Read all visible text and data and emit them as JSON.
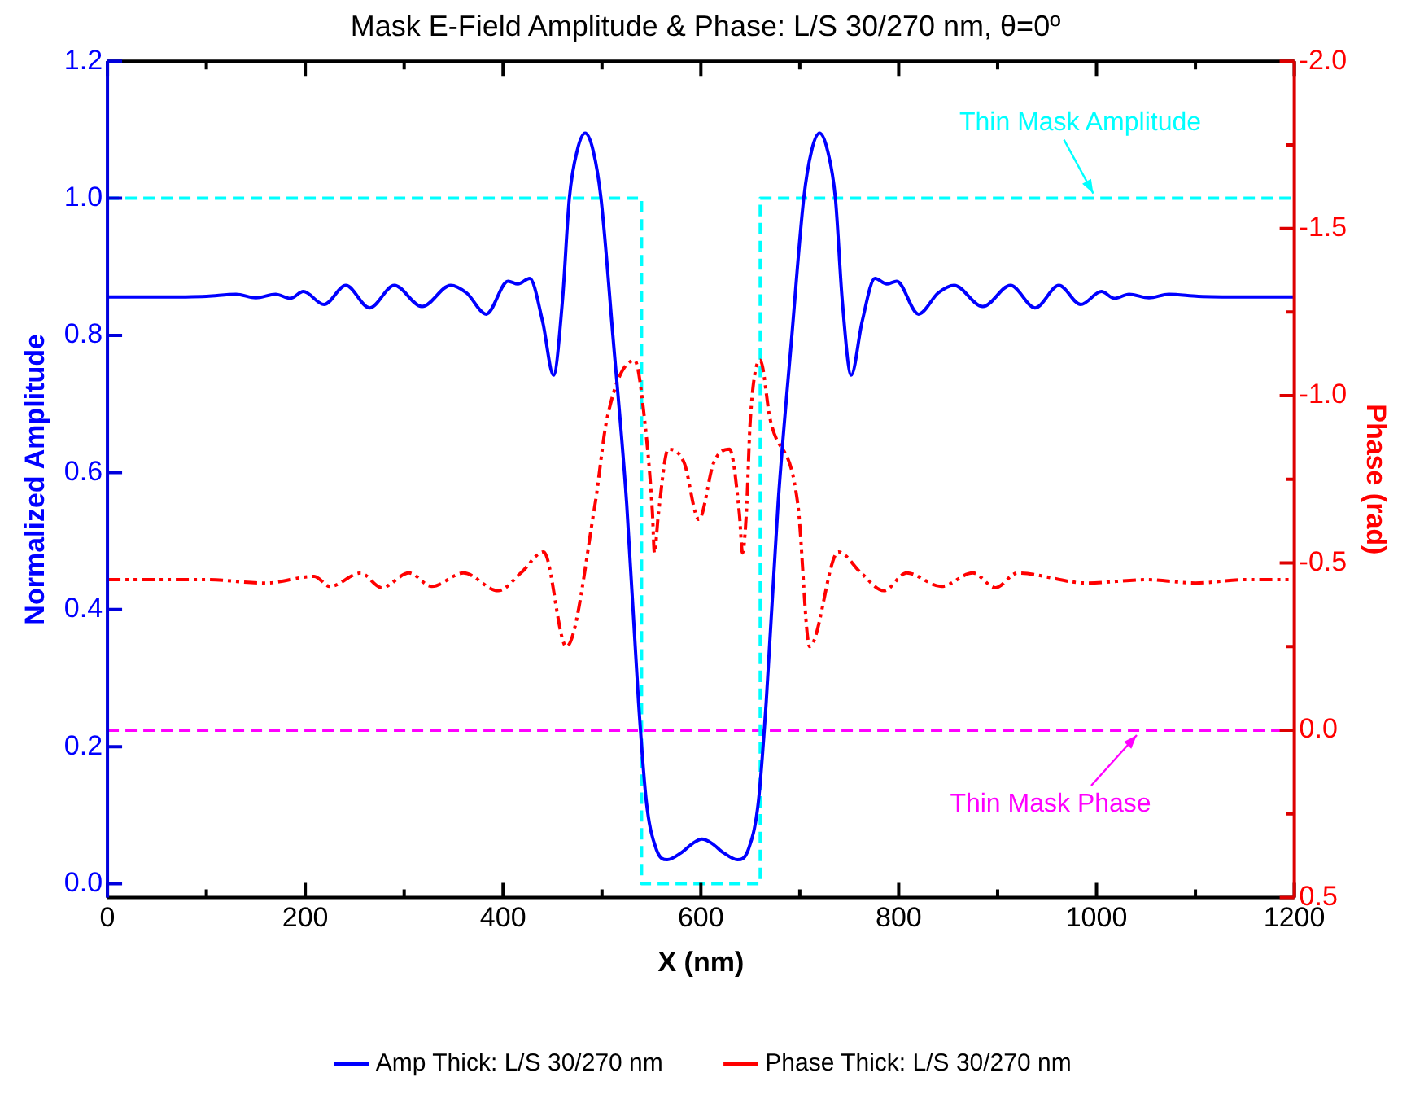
{
  "chart_data": {
    "type": "line",
    "title": "Mask E-Field Amplitude & Phase: L/S 30/270 nm, θ=0º",
    "xlabel": "X (nm)",
    "ylabel": "Normalized Amplitude",
    "y2label": "Phase (rad)",
    "xlim": [
      0,
      1200
    ],
    "xticks": [
      0,
      {
        "value": 100,
        "label": null
      },
      200,
      {
        "value": 300,
        "label": null
      },
      400,
      {
        "value": 500,
        "label": null
      },
      600,
      {
        "value": 700,
        "label": null
      },
      800,
      {
        "value": 900,
        "label": null
      },
      1000,
      {
        "value": 1100,
        "label": null
      },
      1200
    ],
    "ylim": [
      -0.02,
      1.2
    ],
    "yticks": [
      {
        "value": 0,
        "label": "0.0"
      },
      0.2,
      0.4,
      0.6,
      0.8,
      {
        "value": 1,
        "label": "1.0"
      },
      1.2
    ],
    "y2lim": [
      0.5,
      -2.0
    ],
    "y2ticks": [
      0.5,
      {
        "value": 0.25,
        "label": null
      },
      {
        "value": 0,
        "label": "0.0"
      },
      {
        "value": -0.25,
        "label": null
      },
      -0.5,
      {
        "value": -0.75,
        "label": null
      },
      {
        "value": -1,
        "label": "-1.0"
      },
      {
        "value": -1.25,
        "label": null
      },
      -1.5,
      {
        "value": -1.75,
        "label": null
      },
      {
        "value": -2,
        "label": "-2.0"
      }
    ],
    "grid": false,
    "legend": "bottom",
    "marker": "none",
    "series": [
      {
        "name": "Amp Thick: L/S 30/270 nm",
        "color": "#0000ff",
        "line_style": "solid",
        "x": [
          0,
          50,
          100,
          130,
          150,
          170,
          185,
          198,
          219,
          241,
          265,
          290,
          318,
          347,
          363,
          383,
          405,
          415,
          427,
          440,
          451,
          460,
          467,
          475,
          483,
          491,
          499,
          511,
          525,
          537,
          545,
          555,
          566,
          580,
          592,
          601,
          611,
          623,
          637,
          648,
          658,
          666,
          678,
          692,
          704,
          712,
          720,
          728,
          736,
          743,
          752,
          763,
          776,
          788,
          798,
          820,
          840,
          856,
          885,
          913,
          938,
          962,
          984,
          1005,
          1018,
          1033,
          1053,
          1073,
          1103,
          1153,
          1200
        ],
        "values": [
          0.856,
          0.856,
          0.857,
          0.86,
          0.855,
          0.86,
          0.854,
          0.864,
          0.845,
          0.873,
          0.84,
          0.873,
          0.842,
          0.873,
          0.862,
          0.831,
          0.879,
          0.875,
          0.883,
          0.82,
          0.742,
          0.85,
          1.0,
          1.07,
          1.095,
          1.07,
          1.0,
          0.8,
          0.554,
          0.264,
          0.118,
          0.05,
          0.035,
          0.045,
          0.059,
          0.065,
          0.059,
          0.045,
          0.035,
          0.05,
          0.118,
          0.264,
          0.554,
          0.8,
          1.0,
          1.07,
          1.095,
          1.07,
          1.0,
          0.85,
          0.742,
          0.82,
          0.883,
          0.875,
          0.879,
          0.831,
          0.862,
          0.873,
          0.842,
          0.873,
          0.84,
          0.873,
          0.845,
          0.864,
          0.854,
          0.86,
          0.855,
          0.86,
          0.857,
          0.856,
          0.856
        ]
      },
      {
        "name": "Phase Thick: L/S 30/270 nm",
        "color": "#ff0000",
        "line_style": "dotted",
        "axis": "y2",
        "x": [
          0,
          100,
          160,
          209,
          225,
          256,
          277,
          305,
          328,
          360,
          395,
          418,
          441,
          464,
          493,
          505,
          533,
          543,
          551,
          553,
          557,
          567,
          583,
          598,
          613,
          629,
          639,
          642,
          646,
          650,
          660,
          670,
          698,
          710,
          739,
          762,
          785,
          808,
          843,
          875,
          898,
          920,
          990,
          1050,
          1100,
          1150,
          1200
        ],
        "values": [
          -0.45,
          -0.45,
          -0.44,
          -0.46,
          -0.43,
          -0.47,
          -0.426,
          -0.47,
          -0.43,
          -0.47,
          -0.417,
          -0.47,
          -0.533,
          -0.25,
          -0.676,
          -0.93,
          -1.106,
          -0.93,
          -0.65,
          -0.53,
          -0.645,
          -0.84,
          -0.8,
          -0.63,
          -0.8,
          -0.84,
          -0.645,
          -0.53,
          -0.65,
          -0.93,
          -1.106,
          -0.93,
          -0.676,
          -0.25,
          -0.533,
          -0.47,
          -0.417,
          -0.47,
          -0.43,
          -0.47,
          -0.426,
          -0.47,
          -0.44,
          -0.45,
          -0.44,
          -0.45,
          -0.45
        ]
      },
      {
        "color": "#00ffff",
        "line_style": "dashed",
        "x": [
          0,
          540,
          540,
          660,
          660,
          1200
        ],
        "values": [
          1,
          1,
          0,
          0,
          1,
          1
        ]
      }
    ],
    "ref_lines": [
      {
        "axis": "y2",
        "value": 0,
        "label": "Thin Mask Phase",
        "color": "#ff00ff",
        "line_style": "dashed"
      }
    ],
    "annotations": [
      {
        "text": "Thin Mask Amplitude",
        "x": 1000,
        "y": 1.0
      }
    ]
  }
}
